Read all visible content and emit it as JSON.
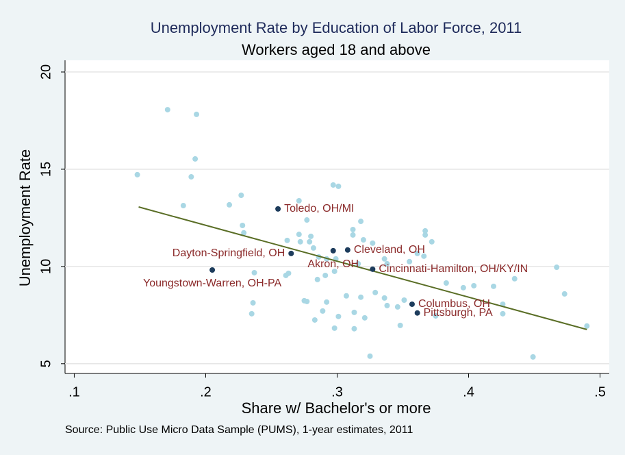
{
  "chart_data": {
    "type": "scatter",
    "title": "Unemployment Rate by Education of Labor Force, 2011",
    "subtitle": "Workers aged 18 and above",
    "x_label": "Share w/ Bachelor's or more",
    "y_label": "Unemployment Rate",
    "note": "Source: Public Use Micro Data Sample (PUMS), 1-year estimates, 2011",
    "xlim": [
      0.093,
      0.507
    ],
    "ylim": [
      4.5,
      20.6
    ],
    "xticks": [
      {
        "value": 0.1,
        "label": ".1"
      },
      {
        "value": 0.2,
        "label": ".2"
      },
      {
        "value": 0.3,
        "label": ".3"
      },
      {
        "value": 0.4,
        "label": ".4"
      },
      {
        "value": 0.5,
        "label": ".5"
      }
    ],
    "yticks": [
      5,
      10,
      15,
      20
    ],
    "grid": true,
    "color": "#a9d7e4",
    "x": [
      0.148,
      0.171,
      0.193,
      0.192,
      0.189,
      0.183,
      0.218,
      0.227,
      0.228,
      0.229,
      0.271,
      0.277,
      0.297,
      0.301,
      0.312,
      0.318,
      0.262,
      0.271,
      0.272,
      0.279,
      0.28,
      0.282,
      0.286,
      0.292,
      0.312,
      0.32,
      0.327,
      0.299,
      0.316,
      0.298,
      0.291,
      0.285,
      0.263,
      0.261,
      0.237,
      0.236,
      0.235,
      0.275,
      0.277,
      0.292,
      0.307,
      0.318,
      0.329,
      0.336,
      0.338,
      0.346,
      0.351,
      0.348,
      0.313,
      0.321,
      0.301,
      0.289,
      0.283,
      0.298,
      0.313,
      0.325,
      0.336,
      0.338,
      0.355,
      0.366,
      0.372,
      0.367,
      0.367,
      0.383,
      0.396,
      0.404,
      0.419,
      0.435,
      0.467,
      0.473,
      0.426,
      0.426,
      0.375,
      0.449,
      0.49,
      0.361
    ],
    "values": [
      14.72,
      18.06,
      17.82,
      15.53,
      14.61,
      13.13,
      13.17,
      13.66,
      12.11,
      11.73,
      13.38,
      12.39,
      14.19,
      14.12,
      11.9,
      12.32,
      11.34,
      11.65,
      11.27,
      11.27,
      11.55,
      10.95,
      10.49,
      10.39,
      11.62,
      11.37,
      11.2,
      10.39,
      10.14,
      9.75,
      9.54,
      9.33,
      9.65,
      9.54,
      9.68,
      8.13,
      7.57,
      8.24,
      8.2,
      8.17,
      8.49,
      8.42,
      8.66,
      8.38,
      7.99,
      7.92,
      8.27,
      6.97,
      7.64,
      7.36,
      7.43,
      7.71,
      7.25,
      6.83,
      6.8,
      5.39,
      10.39,
      10.14,
      10.25,
      10.53,
      11.27,
      11.62,
      11.83,
      9.15,
      8.91,
      9.01,
      8.98,
      9.37,
      9.96,
      8.59,
      7.57,
      8.06,
      7.46,
      5.35,
      6.94,
      10.67
    ],
    "highlighted": {
      "color": "#1d3c5c",
      "label_color": "#8b2a2a",
      "labels": [
        "Toledo, OH/MI",
        "Dayton-Springfield, OH",
        "Cleveland, OH",
        "Akron, OH",
        "Cincinnati-Hamilton, OH/KY/IN",
        "Youngstown-Warren, OH-PA",
        "Columbus, OH",
        "Pittsburgh, PA"
      ],
      "x": [
        0.255,
        0.265,
        0.308,
        0.297,
        0.327,
        0.205,
        0.357,
        0.361
      ],
      "values": [
        12.96,
        10.67,
        10.85,
        10.81,
        9.86,
        9.82,
        8.06,
        7.61
      ],
      "label_positions": [
        "right",
        "left",
        "right",
        "below",
        "right",
        "below",
        "right",
        "right"
      ]
    },
    "fit_line": {
      "color": "#5a6e26",
      "x": [
        0.149,
        0.49
      ],
      "values": [
        13.06,
        6.76
      ]
    }
  }
}
